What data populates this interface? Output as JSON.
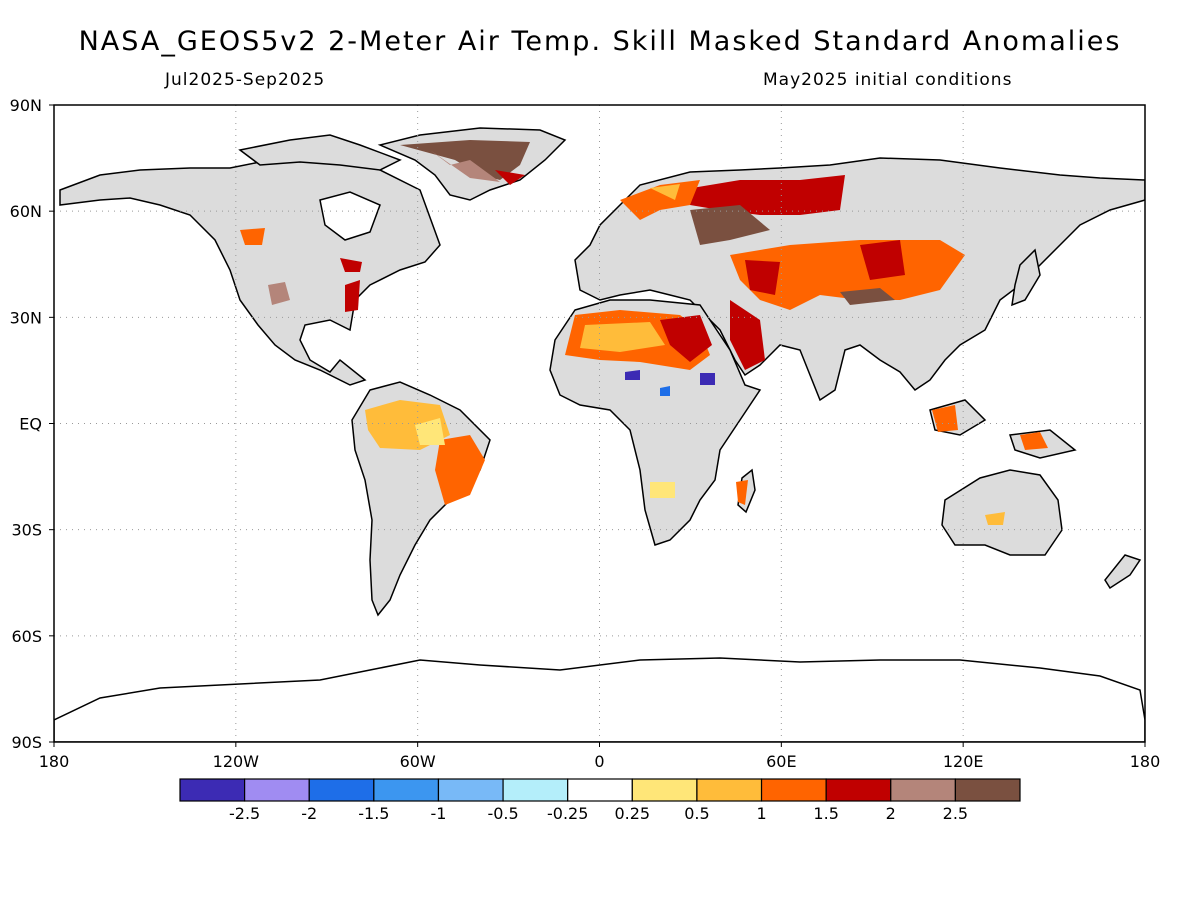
{
  "title": "NASA_GEOS5v2 2-Meter Air Temp. Skill Masked Standard Anomalies",
  "period": "Jul2025-Sep2025",
  "initial_conditions": "May2025 initial conditions",
  "map": {
    "projection": "cylindrical equidistant",
    "lat_ticks": [
      "90N",
      "60N",
      "30N",
      "EQ",
      "30S",
      "60S",
      "90S"
    ],
    "lon_ticks": [
      "180",
      "120W",
      "60W",
      "0",
      "60E",
      "120E",
      "180"
    ],
    "lat_values": [
      90,
      60,
      30,
      0,
      -30,
      -60,
      -90
    ],
    "lon_values": [
      -180,
      -120,
      -60,
      0,
      60,
      120,
      180
    ],
    "grid": "dotted"
  },
  "legend": {
    "colors": [
      "#3c2bb4",
      "#a08cf2",
      "#1e6ee8",
      "#3c96f0",
      "#78b9f7",
      "#b4eefa",
      "#ffffff",
      "#ffe678",
      "#ffbc3a",
      "#ff6400",
      "#c00000",
      "#b4857a",
      "#7a5040"
    ],
    "labels": [
      "-2.5",
      "-2",
      "-1.5",
      "-1",
      "-0.5",
      "-0.25",
      "0.25",
      "0.5",
      "1",
      "1.5",
      "2",
      "2.5"
    ]
  },
  "colors": {
    "land": "#dcdcdc",
    "ocean": "#ffffff",
    "coast": "#000000"
  }
}
